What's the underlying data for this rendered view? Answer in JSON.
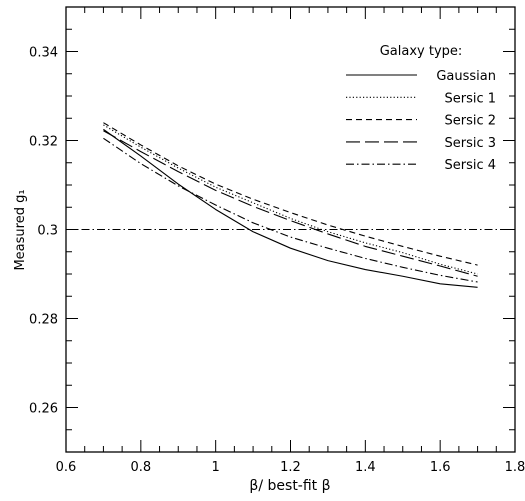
{
  "chart_data": {
    "type": "line",
    "xlabel": "β/ best-fit β",
    "ylabel": "Measured g₁",
    "xlim": [
      0.6,
      1.8
    ],
    "ylim": [
      0.25,
      0.35
    ],
    "xticks": [
      0.6,
      0.8,
      1.0,
      1.2,
      1.4,
      1.6,
      1.8
    ],
    "xtick_labels": [
      "0.6",
      "0.8",
      "1",
      "1.2",
      "1.4",
      "1.6",
      "1.8"
    ],
    "yticks": [
      0.26,
      0.28,
      0.3,
      0.32,
      0.34
    ],
    "ytick_labels": [
      "0.26",
      "0.28",
      "0.3",
      "0.32",
      "0.34"
    ],
    "grid": false,
    "legend": {
      "title": "Galaxy type:",
      "placement": "top-right"
    },
    "reference_line": {
      "y": 0.3,
      "style": "dashdot"
    },
    "x": [
      0.7,
      0.8,
      0.9,
      1.0,
      1.1,
      1.2,
      1.3,
      1.4,
      1.5,
      1.6,
      1.7
    ],
    "series": [
      {
        "name": "Gaussian",
        "style": "solid",
        "values": [
          0.3225,
          0.3165,
          0.3102,
          0.3045,
          0.2995,
          0.2958,
          0.293,
          0.291,
          0.2895,
          0.2878,
          0.287
        ]
      },
      {
        "name": "Sersic 1",
        "style": "dotted",
        "values": [
          0.3235,
          0.3185,
          0.3138,
          0.3095,
          0.306,
          0.3025,
          0.2995,
          0.297,
          0.2948,
          0.2922,
          0.29
        ]
      },
      {
        "name": "Sersic 2",
        "style": "dashed",
        "values": [
          0.324,
          0.319,
          0.3143,
          0.3102,
          0.3068,
          0.3038,
          0.301,
          0.2985,
          0.2962,
          0.294,
          0.292
        ]
      },
      {
        "name": "Sersic 3",
        "style": "longdash",
        "values": [
          0.3222,
          0.3175,
          0.313,
          0.3088,
          0.3052,
          0.302,
          0.299,
          0.2962,
          0.294,
          0.2918,
          0.2895
        ]
      },
      {
        "name": "Sersic 4",
        "style": "dashdot",
        "values": [
          0.3205,
          0.3148,
          0.3098,
          0.3055,
          0.3015,
          0.2983,
          0.2958,
          0.2935,
          0.2915,
          0.2897,
          0.2882
        ]
      }
    ],
    "colors": {
      "line": "#000000",
      "background": "#ffffff"
    }
  }
}
